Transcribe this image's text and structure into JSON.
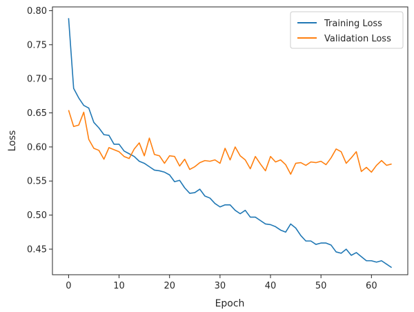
{
  "chart_data": {
    "type": "line",
    "title": "",
    "xlabel": "Epoch",
    "ylabel": "Loss",
    "xlim": [
      -3.2,
      67.2
    ],
    "ylim": [
      0.4125,
      0.8055
    ],
    "xticks": [
      0,
      10,
      20,
      30,
      40,
      50,
      60
    ],
    "yticks": [
      0.45,
      0.5,
      0.55,
      0.6,
      0.65,
      0.7,
      0.75,
      0.8
    ],
    "grid": false,
    "legend": "top-right",
    "x": [
      0,
      1,
      2,
      3,
      4,
      5,
      6,
      7,
      8,
      9,
      10,
      11,
      12,
      13,
      14,
      15,
      16,
      17,
      18,
      19,
      20,
      21,
      22,
      23,
      24,
      25,
      26,
      27,
      28,
      29,
      30,
      31,
      32,
      33,
      34,
      35,
      36,
      37,
      38,
      39,
      40,
      41,
      42,
      43,
      44,
      45,
      46,
      47,
      48,
      49,
      50,
      51,
      52,
      53,
      54,
      55,
      56,
      57,
      58,
      59,
      60,
      61,
      62,
      63,
      64
    ],
    "series": [
      {
        "name": "Training Loss",
        "color": "#1f77b4",
        "values": [
          0.789,
          0.686,
          0.672,
          0.661,
          0.657,
          0.636,
          0.628,
          0.618,
          0.617,
          0.604,
          0.604,
          0.594,
          0.59,
          0.586,
          0.579,
          0.576,
          0.571,
          0.566,
          0.565,
          0.563,
          0.559,
          0.549,
          0.551,
          0.54,
          0.532,
          0.533,
          0.538,
          0.528,
          0.525,
          0.517,
          0.512,
          0.515,
          0.515,
          0.507,
          0.502,
          0.507,
          0.497,
          0.497,
          0.492,
          0.487,
          0.486,
          0.483,
          0.478,
          0.475,
          0.487,
          0.481,
          0.47,
          0.462,
          0.462,
          0.457,
          0.459,
          0.459,
          0.456,
          0.446,
          0.444,
          0.45,
          0.441,
          0.445,
          0.439,
          0.433,
          0.433,
          0.431,
          0.433,
          0.428,
          0.423
        ]
      },
      {
        "name": "Validation Loss",
        "color": "#ff7f0e",
        "values": [
          0.654,
          0.63,
          0.632,
          0.651,
          0.611,
          0.598,
          0.595,
          0.582,
          0.599,
          0.596,
          0.593,
          0.586,
          0.583,
          0.597,
          0.606,
          0.587,
          0.613,
          0.589,
          0.587,
          0.576,
          0.587,
          0.586,
          0.572,
          0.582,
          0.567,
          0.571,
          0.577,
          0.58,
          0.579,
          0.581,
          0.576,
          0.598,
          0.581,
          0.6,
          0.587,
          0.581,
          0.568,
          0.586,
          0.575,
          0.565,
          0.586,
          0.578,
          0.581,
          0.574,
          0.56,
          0.576,
          0.577,
          0.573,
          0.578,
          0.577,
          0.579,
          0.574,
          0.584,
          0.597,
          0.593,
          0.576,
          0.584,
          0.593,
          0.564,
          0.57,
          0.563,
          0.573,
          0.58,
          0.573,
          0.575
        ]
      }
    ]
  }
}
